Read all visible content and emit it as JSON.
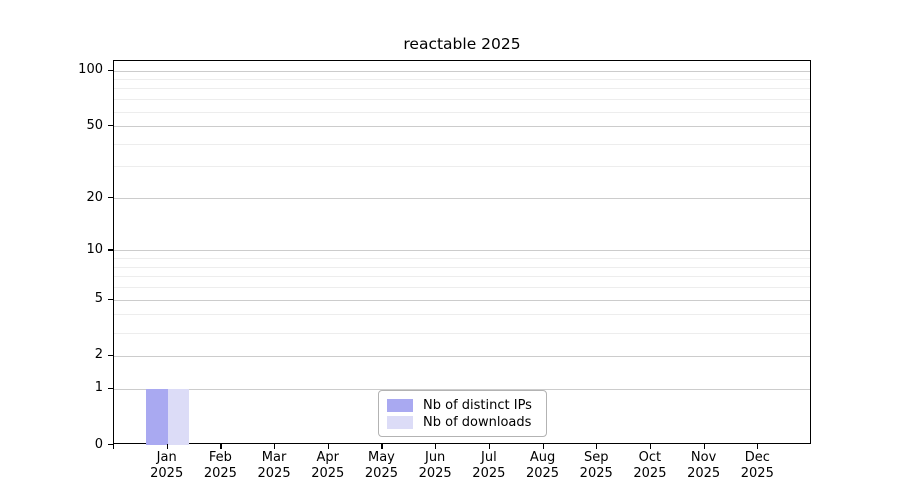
{
  "chart_data": {
    "type": "bar",
    "title": "reactable 2025",
    "x_categories": [
      "Jan",
      "Feb",
      "Mar",
      "Apr",
      "May",
      "Jun",
      "Jul",
      "Aug",
      "Sep",
      "Oct",
      "Nov",
      "Dec"
    ],
    "x_year_label": "2025",
    "series": [
      {
        "name": "Nb of distinct IPs",
        "color": "#a9a9f1",
        "values": [
          1,
          0,
          0,
          0,
          0,
          0,
          0,
          0,
          0,
          0,
          0,
          0
        ]
      },
      {
        "name": "Nb of downloads",
        "color": "#dcdcf7",
        "values": [
          1,
          0,
          0,
          0,
          0,
          0,
          0,
          0,
          0,
          0,
          0,
          0
        ]
      }
    ],
    "xlabel": "",
    "ylabel": "",
    "yscale": "log10(value+1)",
    "ylim": [
      0,
      110
    ],
    "yticks": [
      0,
      1,
      2,
      5,
      10,
      20,
      50,
      100
    ],
    "yminor_gridlines": [
      3,
      4,
      6,
      7,
      8,
      9,
      30,
      40,
      60,
      70,
      80,
      90
    ],
    "grid": "horizontal",
    "legend": {
      "position": "bottom-center"
    },
    "colors": {
      "grid_major": "#cccccc",
      "grid_minor": "#ededed",
      "axis": "#000000",
      "text": "#000000",
      "background": "#ffffff"
    }
  }
}
